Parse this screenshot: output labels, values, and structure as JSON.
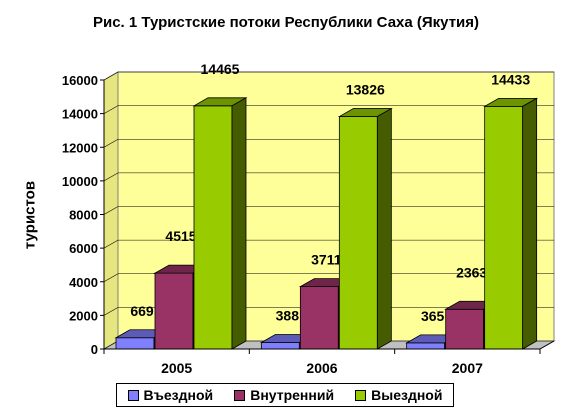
{
  "chart_data": {
    "type": "bar",
    "title": "Рис. 1  Туристские потоки Республики Саха (Якутия)",
    "xlabel": "",
    "ylabel": "туристов",
    "categories": [
      "2005",
      "2006",
      "2007"
    ],
    "series": [
      {
        "name": "Въездной",
        "values": [
          669,
          388,
          365
        ],
        "color": "#8080FF"
      },
      {
        "name": "Внутренний",
        "values": [
          4515,
          3711,
          2363
        ],
        "color": "#993366"
      },
      {
        "name": "Выездной",
        "values": [
          14465,
          13826,
          14433
        ],
        "color": "#99CC00"
      }
    ],
    "ylim": [
      0,
      16000
    ],
    "yticks": [
      "0",
      "2000",
      "4000",
      "6000",
      "8000",
      "10000",
      "12000",
      "14000",
      "16000"
    ],
    "grid": true,
    "legend": "bottom",
    "wall_color": "#FFFF99",
    "three_d": true
  }
}
